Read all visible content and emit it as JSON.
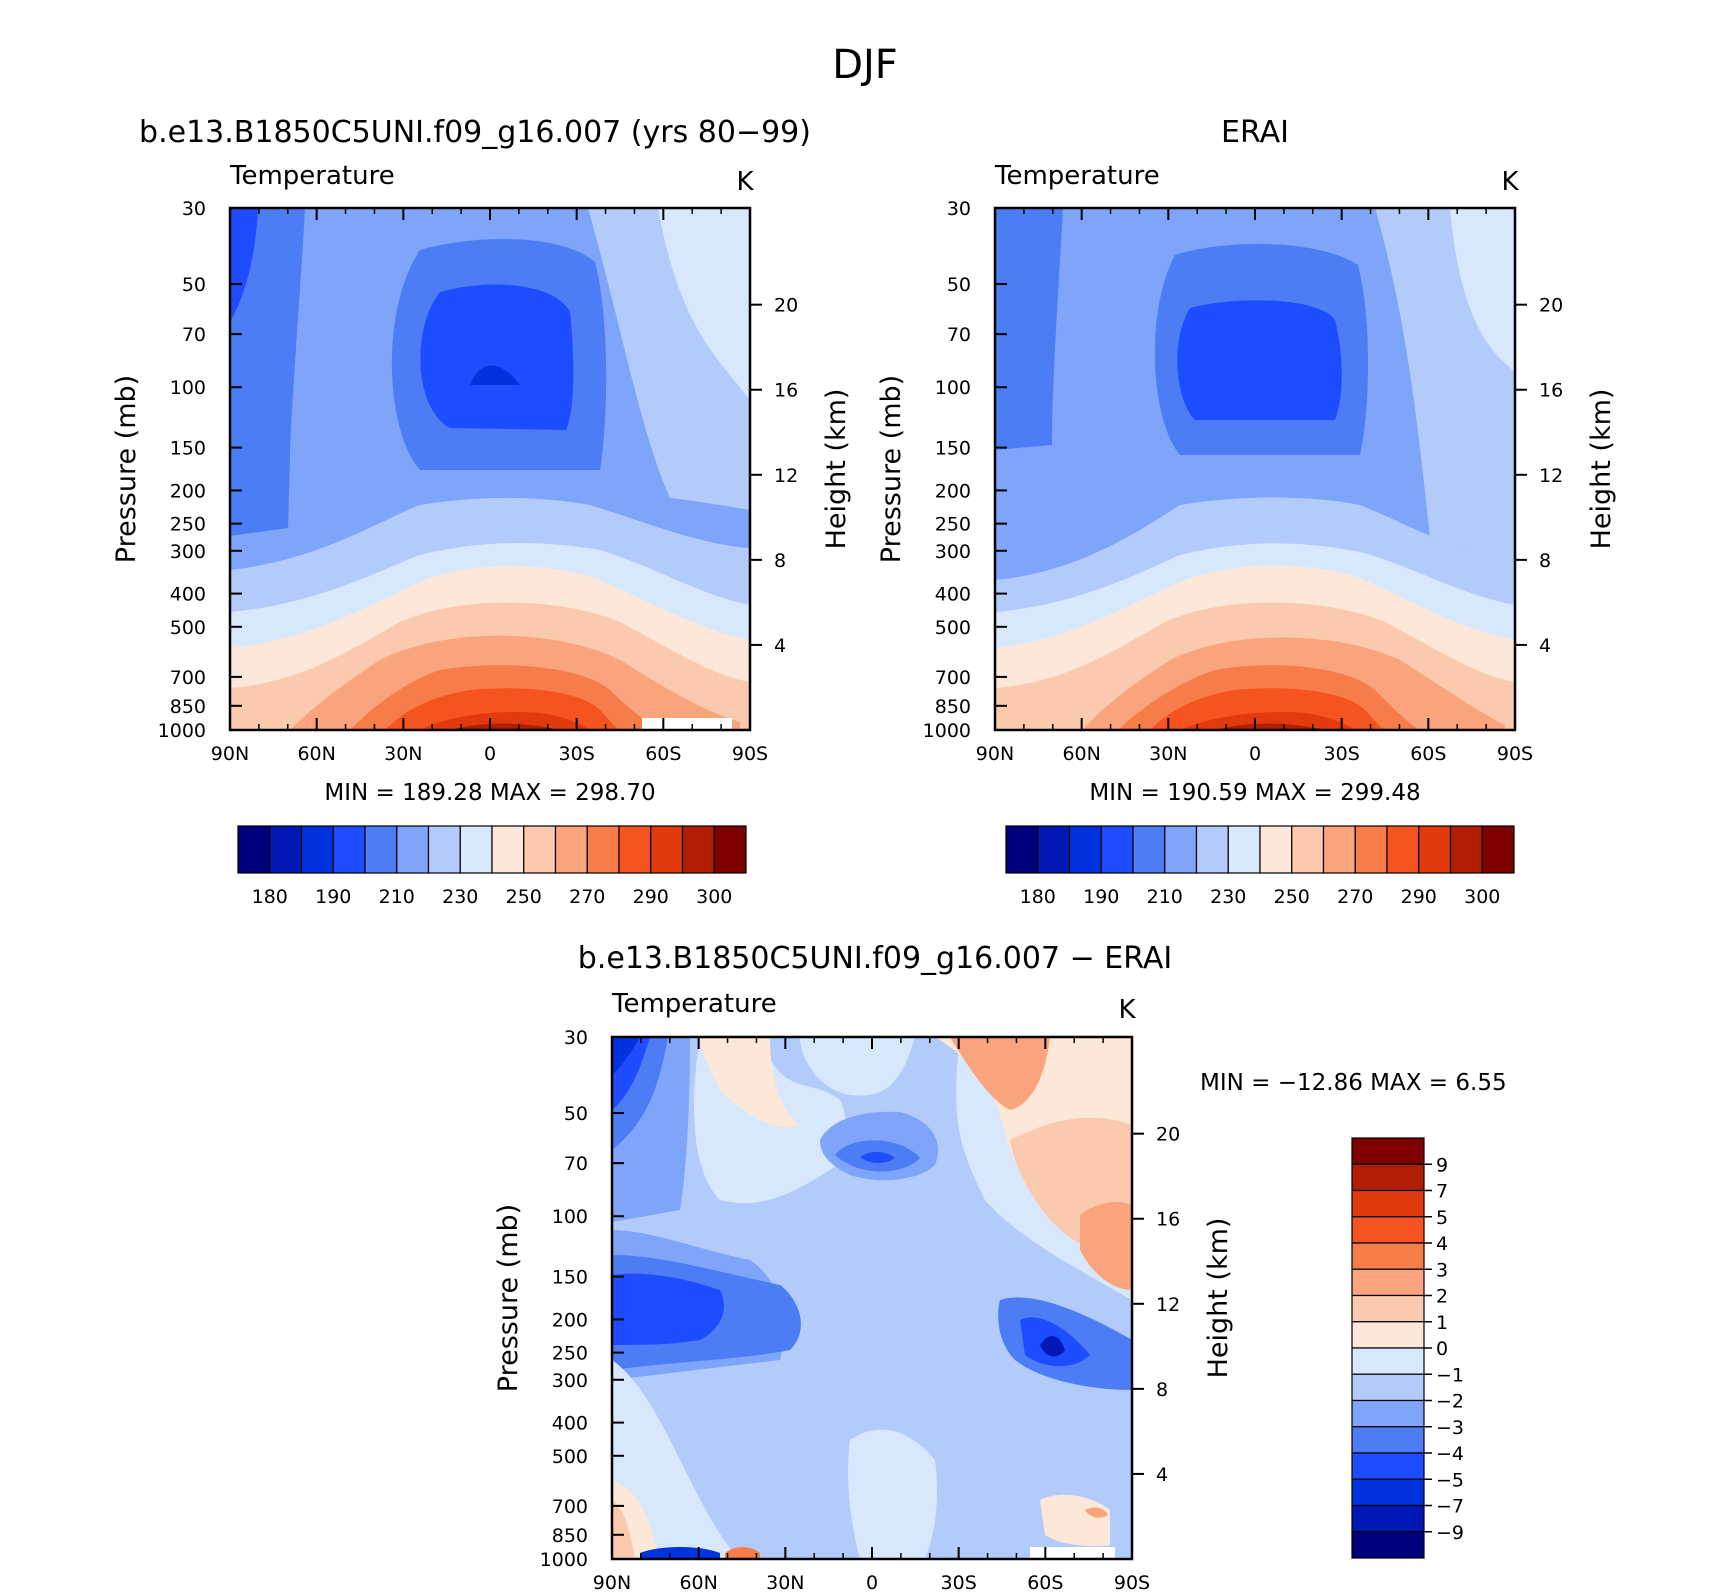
{
  "figure": {
    "title": "DJF"
  },
  "panels": [
    {
      "id": "model",
      "title": "b.e13.B1850C5UNI.f09_g16.007 (yrs 80−99)",
      "variable": "Temperature",
      "units": "K",
      "min_max": "MIN = 189.28 MAX = 298.70"
    },
    {
      "id": "obs",
      "title": "ERAI",
      "variable": "Temperature",
      "units": "K",
      "min_max": "MIN = 190.59 MAX = 299.48"
    },
    {
      "id": "diff",
      "title": "b.e13.B1850C5UNI.f09_g16.007 − ERAI",
      "variable": "Temperature",
      "units": "K",
      "min_max": "MIN = −12.86   MAX =     6.55"
    }
  ],
  "axes": {
    "x_ticks": [
      "90N",
      "60N",
      "30N",
      "0",
      "30S",
      "60S",
      "90S"
    ],
    "x_values": [
      90,
      60,
      30,
      0,
      -30,
      -60,
      -90
    ],
    "y_label": "Pressure (mb)",
    "y_ticks": [
      "30",
      "50",
      "70",
      "100",
      "150",
      "200",
      "250",
      "300",
      "400",
      "500",
      "700",
      "850",
      "1000"
    ],
    "y_values": [
      30,
      50,
      70,
      100,
      150,
      200,
      250,
      300,
      400,
      500,
      700,
      850,
      1000
    ],
    "y_scale": "log",
    "y2_label": "Height (km)",
    "y2_ticks": [
      "20",
      "16",
      "12",
      "8",
      "4"
    ],
    "y2_values": [
      20,
      16,
      12,
      8,
      4
    ]
  },
  "colorbars": {
    "abs": {
      "labels": [
        "180",
        "190",
        "210",
        "230",
        "250",
        "270",
        "290",
        "300"
      ],
      "colors": [
        "#00007f",
        "#0019b4",
        "#0033dd",
        "#1e4dff",
        "#4d7df5",
        "#7fa5fa",
        "#b2cbfb",
        "#d8e8fc",
        "#fde7d8",
        "#fbcaae",
        "#f9a47c",
        "#f67d4a",
        "#f5531f",
        "#e03a0d",
        "#b21e04",
        "#7f0000"
      ]
    },
    "diff": {
      "labels": [
        "9",
        "7",
        "5",
        "4",
        "3",
        "2",
        "1",
        "0",
        "−1",
        "−2",
        "−3",
        "−4",
        "−5",
        "−7",
        "−9"
      ],
      "colors": [
        "#7f0000",
        "#b21e04",
        "#e03a0d",
        "#f5531f",
        "#f67d4a",
        "#f9a47c",
        "#fbcaae",
        "#fde7d8",
        "#d8e8fc",
        "#b2cbfb",
        "#7fa5fa",
        "#4d7df5",
        "#1e4dff",
        "#0033dd",
        "#0019b4",
        "#00007f"
      ]
    }
  }
}
